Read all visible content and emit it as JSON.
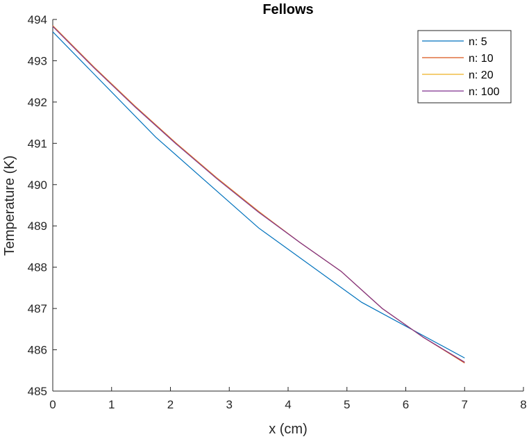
{
  "chart_data": {
    "type": "line",
    "title": "Fellows",
    "xlabel": "x (cm)",
    "ylabel": "Temperature (K)",
    "xlim": [
      0,
      8
    ],
    "ylim": [
      485,
      494
    ],
    "xticks": [
      0,
      1,
      2,
      3,
      4,
      5,
      6,
      7,
      8
    ],
    "yticks": [
      485,
      486,
      487,
      488,
      489,
      490,
      491,
      492,
      493,
      494
    ],
    "grid": false,
    "legend_position": "top-right",
    "series": [
      {
        "name": "n: 5",
        "color": "#0072BD",
        "x": [
          0,
          1.75,
          3.5,
          5.25,
          7
        ],
        "y": [
          493.7,
          491.15,
          488.95,
          487.15,
          485.8
        ]
      },
      {
        "name": "n: 10",
        "color": "#D95319",
        "x": [
          0,
          0.7,
          1.4,
          2.1,
          2.8,
          3.5,
          4.2,
          4.9,
          5.6,
          6.3,
          7
        ],
        "y": [
          493.85,
          492.85,
          491.9,
          491.0,
          490.15,
          489.35,
          488.6,
          487.9,
          487.0,
          486.3,
          485.68
        ]
      },
      {
        "name": "n: 20",
        "color": "#EDB120",
        "x": [
          0,
          0.7,
          1.4,
          2.1,
          2.8,
          3.5,
          4.2,
          4.9,
          5.6,
          6.3,
          7
        ],
        "y": [
          493.84,
          492.84,
          491.89,
          490.99,
          490.14,
          489.34,
          488.6,
          487.9,
          487.0,
          486.3,
          485.7
        ]
      },
      {
        "name": "n: 100",
        "color": "#7E2F8E",
        "x": [
          0,
          0.7,
          1.4,
          2.1,
          2.8,
          3.5,
          4.2,
          4.9,
          5.6,
          6.3,
          7
        ],
        "y": [
          493.83,
          492.83,
          491.88,
          490.98,
          490.13,
          489.33,
          488.6,
          487.9,
          487.0,
          486.3,
          485.7
        ]
      }
    ]
  }
}
